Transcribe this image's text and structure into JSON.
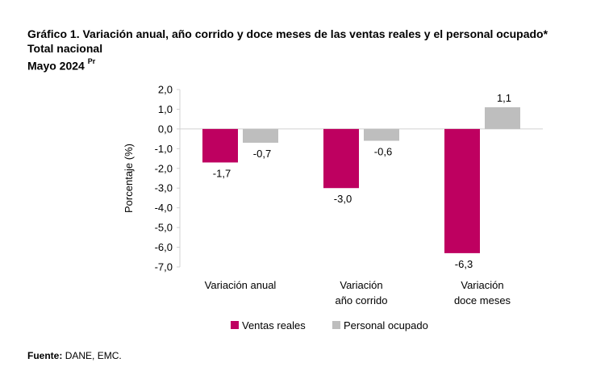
{
  "header": {
    "title": "Gráfico 1. Variación anual, año corrido y doce meses de las ventas reales y el personal ocupado*",
    "subtitle": "Total nacional",
    "period": "Mayo 2024",
    "period_sup": "Pr"
  },
  "source": {
    "label": "Fuente:",
    "text": "DANE, EMC."
  },
  "colors": {
    "ventas": "#BE0060",
    "personal": "#BEBEBE"
  },
  "chart_data": {
    "type": "bar",
    "title": "Gráfico 1. Variación anual, año corrido y doce meses de las ventas reales y el personal ocupado*",
    "ylabel": "Porcentaje (%)",
    "xlabel": "",
    "ylim": [
      -7.0,
      2.0
    ],
    "yticks": [
      "2,0",
      "1,0",
      "0,0",
      "-1,0",
      "-2,0",
      "-3,0",
      "-4,0",
      "-5,0",
      "-6,0",
      "-7,0"
    ],
    "ytick_values": [
      2,
      1,
      0,
      -1,
      -2,
      -3,
      -4,
      -5,
      -6,
      -7
    ],
    "categories": [
      [
        "Variación anual"
      ],
      [
        "Variación",
        "año corrido"
      ],
      [
        "Variación",
        "doce meses"
      ]
    ],
    "series": [
      {
        "name": "Ventas reales",
        "values": [
          -1.7,
          -3.0,
          -6.3
        ],
        "labels": [
          "-1,7",
          "-3,0",
          "-6,3"
        ]
      },
      {
        "name": "Personal ocupado",
        "values": [
          -0.7,
          -0.6,
          1.1
        ],
        "labels": [
          "-0,7",
          "-0,6",
          "1,1"
        ]
      }
    ],
    "legend": "bottom",
    "grid": false
  }
}
